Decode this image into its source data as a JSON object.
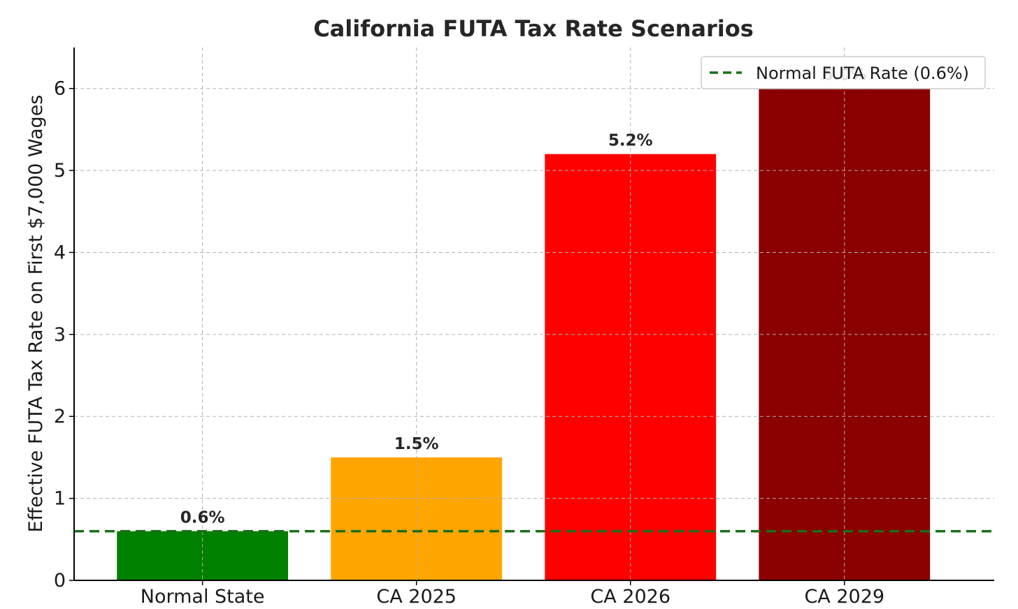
{
  "chart_data": {
    "type": "bar",
    "title": "California FUTA Tax Rate Scenarios",
    "xlabel": "",
    "ylabel": "Effective FUTA Tax Rate on First $7,000 Wages",
    "categories": [
      "Normal State",
      "CA 2025",
      "CA 2026",
      "CA 2029"
    ],
    "values": [
      0.6,
      1.5,
      5.2,
      6.0
    ],
    "data_labels": [
      "0.6%",
      "1.5%",
      "5.2%",
      "6.0%"
    ],
    "colors": [
      "#008000",
      "#ffa500",
      "#ff0000",
      "#8b0000"
    ],
    "ylim": [
      0,
      6.5
    ],
    "yticks": [
      0,
      1,
      2,
      3,
      4,
      5,
      6
    ],
    "grid": true,
    "reference_line": {
      "value": 0.6,
      "name": "Normal FUTA Rate (0.6%)",
      "color": "#1a6e1a",
      "style": "dashed"
    },
    "legend": {
      "placement": "top-right",
      "entries": [
        "Normal FUTA Rate (0.6%)"
      ]
    }
  }
}
